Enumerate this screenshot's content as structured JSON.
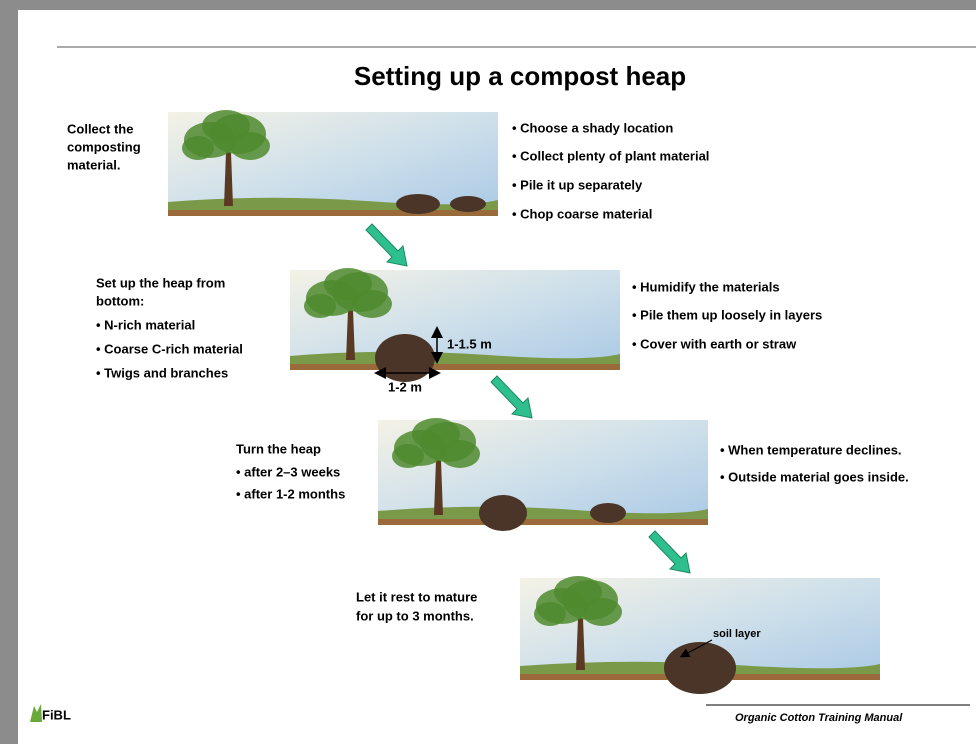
{
  "title": "Setting up a compost heap",
  "steps": [
    {
      "caption": [
        "Collect the",
        "composting",
        "material."
      ],
      "notes": [
        "• Choose a shady location",
        "• Collect plenty of plant material",
        "• Pile it up separately",
        "• Chop coarse material"
      ]
    },
    {
      "caption": [
        "Set up the heap from",
        "bottom:",
        "• N-rich material",
        "• Coarse C-rich material",
        "• Twigs and branches"
      ],
      "notes": [
        "• Humidify the materials",
        "• Pile them up loosely in layers",
        "• Cover with earth or straw"
      ]
    },
    {
      "caption": [
        "Turn the heap",
        "• after 2–3 weeks",
        "• after 1-2 months"
      ],
      "notes": [
        "• When temperature declines.",
        "• Outside material goes inside."
      ]
    },
    {
      "caption": [
        "Let it rest to mature",
        "for up to 3 months."
      ],
      "notes": []
    }
  ],
  "annotations": {
    "height": "1-1.5 m",
    "width": "1-2 m",
    "soil": "soil layer"
  },
  "footer": {
    "logo": "FiBL",
    "manual": "Organic Cotton Training Manual"
  }
}
